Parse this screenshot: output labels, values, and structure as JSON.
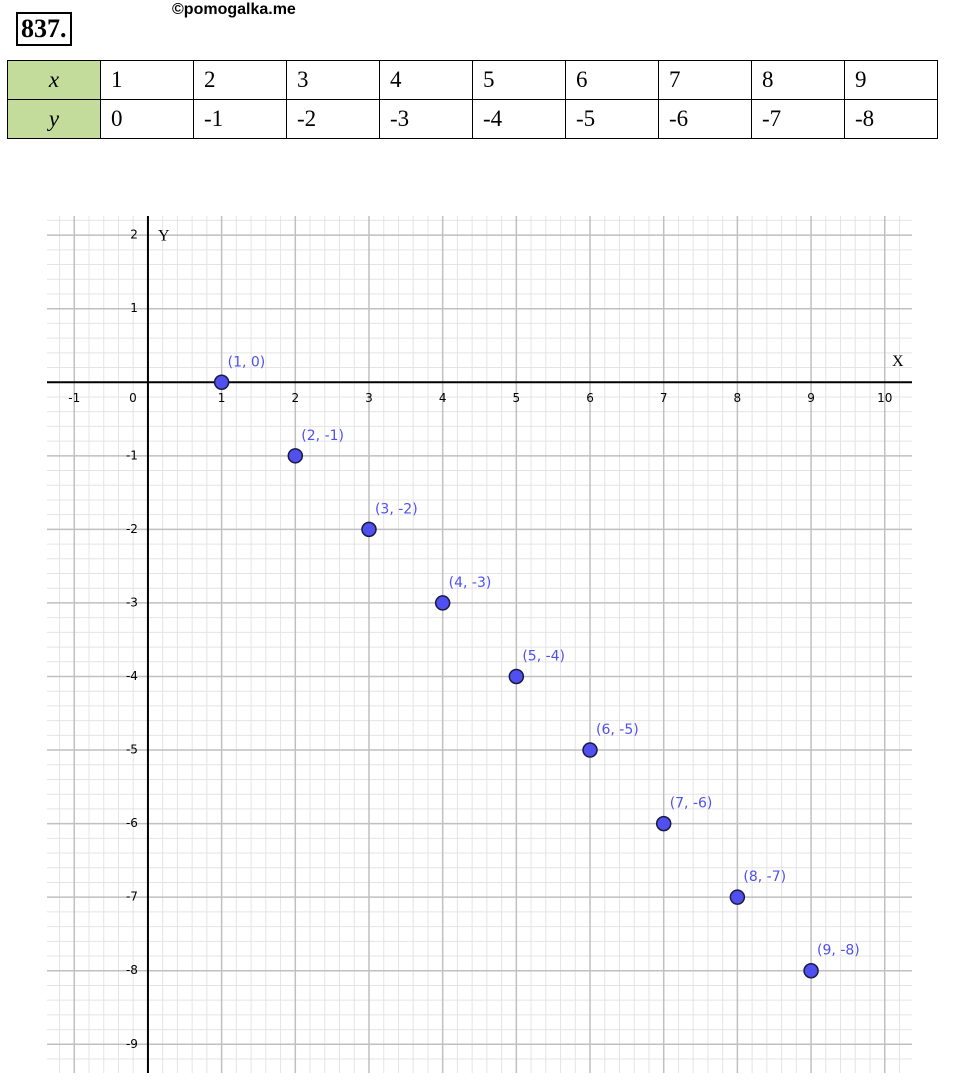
{
  "header": {
    "number": "837.",
    "watermark": "©pomogalka.me"
  },
  "table": {
    "rows": [
      [
        "x",
        1,
        2,
        3,
        4,
        5,
        6,
        7,
        8,
        9
      ],
      [
        "y",
        0,
        -1,
        -2,
        -3,
        -4,
        -5,
        -6,
        -7,
        -8
      ]
    ]
  },
  "chart_data": {
    "type": "scatter",
    "x_label": "X",
    "y_label": "Y",
    "series": [
      {
        "color": "#5050f0",
        "x": [
          1,
          2,
          3,
          4,
          5,
          6,
          7,
          8,
          9
        ],
        "values": [
          0,
          -1,
          -2,
          -3,
          -4,
          -5,
          -6,
          -7,
          -8
        ],
        "value_labels": [
          "(1, 0)",
          "(2, -1)",
          "(3, -2)",
          "(4, -3)",
          "(5, -4)",
          "(6, -5)",
          "(7, -6)",
          "(8, -7)",
          "(9, -8)"
        ]
      }
    ],
    "xlim": [
      -1.37,
      10.37
    ],
    "ylim": [
      -9.39,
      2.26
    ],
    "xticks": [
      -1,
      0,
      1,
      2,
      3,
      4,
      5,
      6,
      7,
      8,
      9,
      10
    ],
    "yticks": [
      -9,
      -8,
      -7,
      -6,
      -5,
      -4,
      -3,
      -2,
      -1,
      1,
      2
    ],
    "grid": true,
    "minor_grid": true
  }
}
